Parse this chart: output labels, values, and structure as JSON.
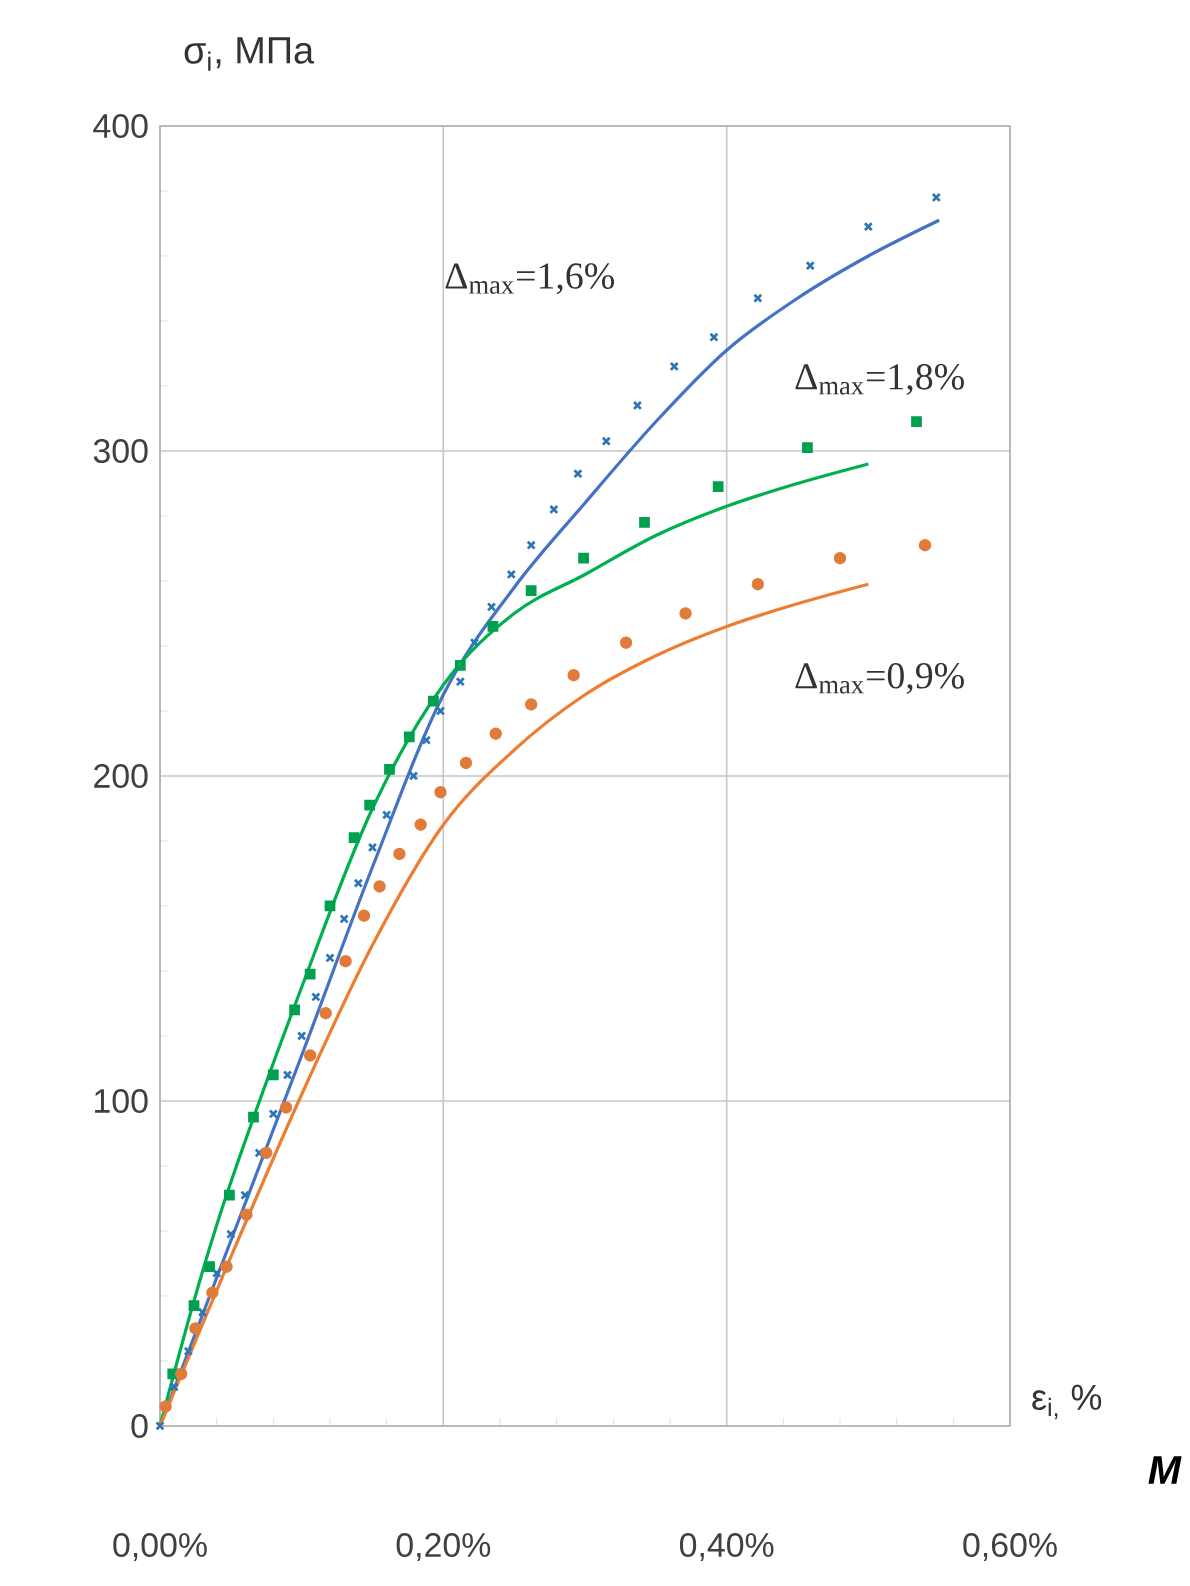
{
  "chart_data": {
    "type": "line",
    "ylabel": "σ$_{i}$, МПа",
    "xlabel": "ε$_{i,}$ %",
    "xlim": [
      0,
      0.6
    ],
    "xticks": [
      {
        "value": 0,
        "label": "0,00%"
      },
      {
        "value": 0.2,
        "label": "0,20%"
      },
      {
        "value": 0.4,
        "label": "0,40%"
      },
      {
        "value": 0.6,
        "label": "0,60%"
      }
    ],
    "ylim": [
      0,
      400
    ],
    "yticks": [
      0,
      100,
      200,
      300,
      400
    ],
    "grid": true,
    "annotations": [
      "Δ$_{max}$=1,6%",
      "Δ$_{max}$=1,8%",
      "Δ$_{max}$=0,9%",
      "M"
    ],
    "series": [
      {
        "color": "#4472c4",
        "marker": "none",
        "x": [
          0,
          0.05,
          0.1,
          0.15,
          0.2,
          0.25,
          0.3,
          0.35,
          0.4,
          0.45,
          0.5,
          0.55
        ],
        "values": [
          0,
          57,
          114,
          172,
          225,
          258,
          284,
          309,
          331,
          347,
          360,
          371
        ]
      },
      {
        "color": "#00b050",
        "marker": "none",
        "x": [
          0,
          0.025,
          0.05,
          0.1,
          0.15,
          0.2,
          0.25,
          0.3,
          0.35,
          0.4,
          0.45,
          0.5
        ],
        "values": [
          0,
          40,
          75,
          135,
          190,
          228,
          250,
          262,
          274,
          283,
          290,
          296
        ]
      },
      {
        "color": "#ed7d31",
        "marker": "none",
        "x": [
          0,
          0.05,
          0.1,
          0.15,
          0.2,
          0.25,
          0.3,
          0.35,
          0.4,
          0.45,
          0.5
        ],
        "values": [
          0,
          52,
          102,
          148,
          185,
          208,
          225,
          237,
          246,
          253,
          259
        ]
      },
      {
        "type": "scatter",
        "color": "#2e75b6",
        "marker": "cross",
        "x": [
          0,
          0.01,
          0.02,
          0.03,
          0.04,
          0.05,
          0.06,
          0.07,
          0.08,
          0.09,
          0.1,
          0.11,
          0.12,
          0.13,
          0.14,
          0.15,
          0.16,
          0.179,
          0.188,
          0.198,
          0.212,
          0.222,
          0.234,
          0.248,
          0.262,
          0.278,
          0.295,
          0.315,
          0.337,
          0.363,
          0.391,
          0.422,
          0.459,
          0.5,
          0.548
        ],
        "values": [
          0,
          12,
          23,
          35,
          47,
          59,
          71,
          84,
          96,
          108,
          120,
          132,
          144,
          156,
          167,
          178,
          188,
          200,
          211,
          220,
          229,
          241,
          252,
          262,
          271,
          282,
          293,
          303,
          314,
          326,
          335,
          347,
          357,
          369,
          378
        ]
      },
      {
        "type": "scatter",
        "color": "#00a050",
        "marker": "square",
        "x": [
          0.009,
          0.024,
          0.035,
          0.049,
          0.066,
          0.08,
          0.095,
          0.106,
          0.12,
          0.137,
          0.148,
          0.162,
          0.176,
          0.193,
          0.212,
          0.235,
          0.262,
          0.299,
          0.342,
          0.394,
          0.457,
          0.534
        ],
        "values": [
          16,
          37,
          49,
          71,
          95,
          108,
          128,
          139,
          160,
          181,
          191,
          202,
          212,
          223,
          234,
          246,
          257,
          267,
          278,
          289,
          301,
          309
        ]
      },
      {
        "type": "scatter",
        "color": "#e07b39",
        "marker": "circle",
        "x": [
          0.004,
          0.015,
          0.025,
          0.037,
          0.047,
          0.061,
          0.075,
          0.089,
          0.106,
          0.117,
          0.131,
          0.144,
          0.155,
          0.169,
          0.184,
          0.198,
          0.216,
          0.237,
          0.262,
          0.292,
          0.329,
          0.371,
          0.422,
          0.48,
          0.54
        ],
        "values": [
          6,
          16,
          30,
          41,
          49,
          65,
          84,
          98,
          114,
          127,
          143,
          157,
          166,
          176,
          185,
          195,
          204,
          213,
          222,
          231,
          241,
          250,
          259,
          267,
          271
        ]
      }
    ]
  }
}
